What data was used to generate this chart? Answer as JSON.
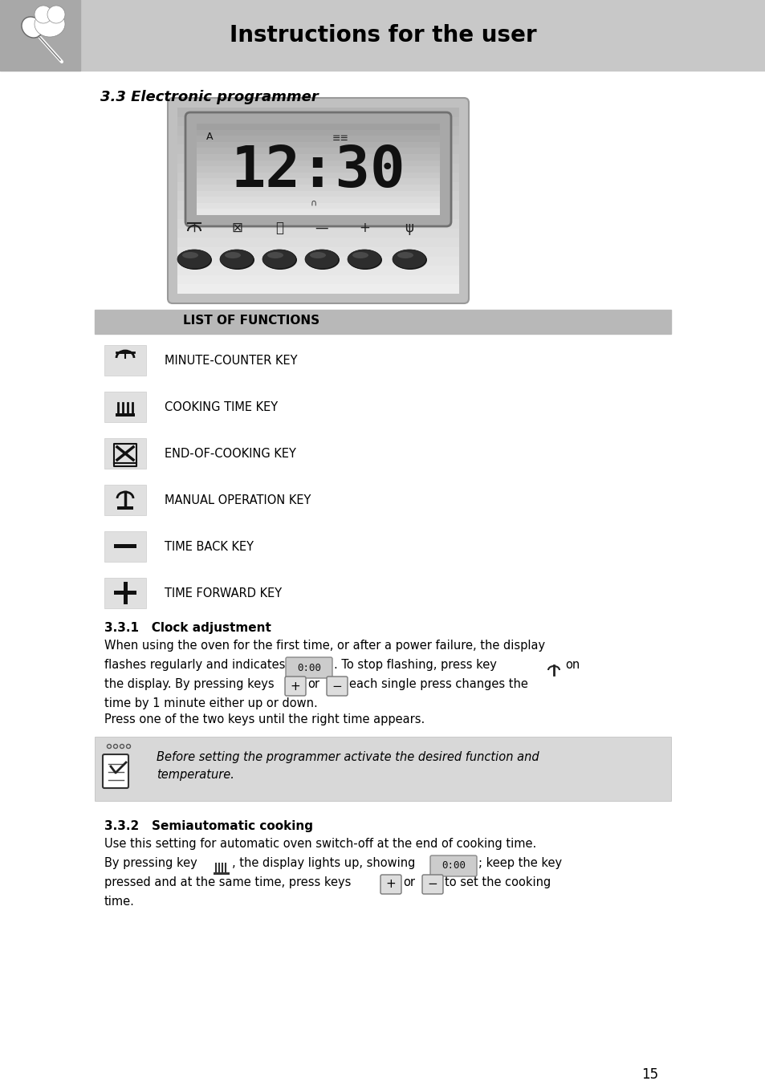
{
  "page_bg": "#ffffff",
  "header_bg": "#c8c8c8",
  "header_icon_bg": "#a8a8a8",
  "header_title": "Instructions for the user",
  "header_title_fontsize": 20,
  "section_title": "3.3 Electronic programmer",
  "section_title_fontsize": 13,
  "list_functions_bg": "#b8b8b8",
  "list_functions_title": "LIST OF FUNCTIONS",
  "list_functions_fontsize": 11,
  "body_fontsize": 10.5,
  "note_bg": "#d8d8d8",
  "note_text_line1": "Before setting the programmer activate the desired function and",
  "note_text_line2": "temperature.",
  "page_number": "15"
}
